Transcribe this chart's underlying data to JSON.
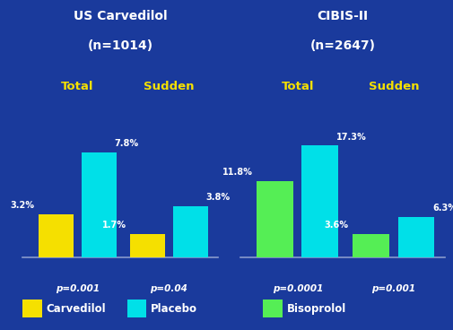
{
  "background_color": "#1a3a9c",
  "left_title_line1": "US Carvedilol",
  "left_title_line2": "(n=1014)",
  "right_title_line1": "CIBIS-II",
  "right_title_line2": "(n=2647)",
  "label_total": "Total",
  "label_sudden": "Sudden",
  "left_groups": [
    {
      "name": "Total",
      "bars": [
        {
          "label": "Carvedilol",
          "value": 3.2,
          "color": "#f5e000"
        },
        {
          "label": "Placebo",
          "value": 7.8,
          "color": "#00e0e8"
        }
      ],
      "pvalue": "p=0.001"
    },
    {
      "name": "Sudden",
      "bars": [
        {
          "label": "Carvedilol",
          "value": 1.7,
          "color": "#f5e000"
        },
        {
          "label": "Placebo",
          "value": 3.8,
          "color": "#00e0e8"
        }
      ],
      "pvalue": "p=0.04"
    }
  ],
  "right_groups": [
    {
      "name": "Total",
      "bars": [
        {
          "label": "Bisoprolol",
          "value": 11.8,
          "color": "#55ee55"
        },
        {
          "label": "Placebo",
          "value": 17.3,
          "color": "#00e0e8"
        }
      ],
      "pvalue": "p=0.0001"
    },
    {
      "name": "Sudden",
      "bars": [
        {
          "label": "Bisoprolol",
          "value": 3.6,
          "color": "#55ee55"
        },
        {
          "label": "Placebo",
          "value": 6.3,
          "color": "#00e0e8"
        }
      ],
      "pvalue": "p=0.001"
    }
  ],
  "legend_items": [
    {
      "label": "Carvedilol",
      "color": "#f5e000"
    },
    {
      "label": "Placebo",
      "color": "#00e0e8"
    },
    {
      "label": "Bisoprolol",
      "color": "#55ee55"
    }
  ],
  "title_color": "#ffffff",
  "category_label_color": "#f5e000",
  "pvalue_color": "#ffffff",
  "bar_label_color": "#ffffff",
  "legend_text_color": "#ffffff"
}
